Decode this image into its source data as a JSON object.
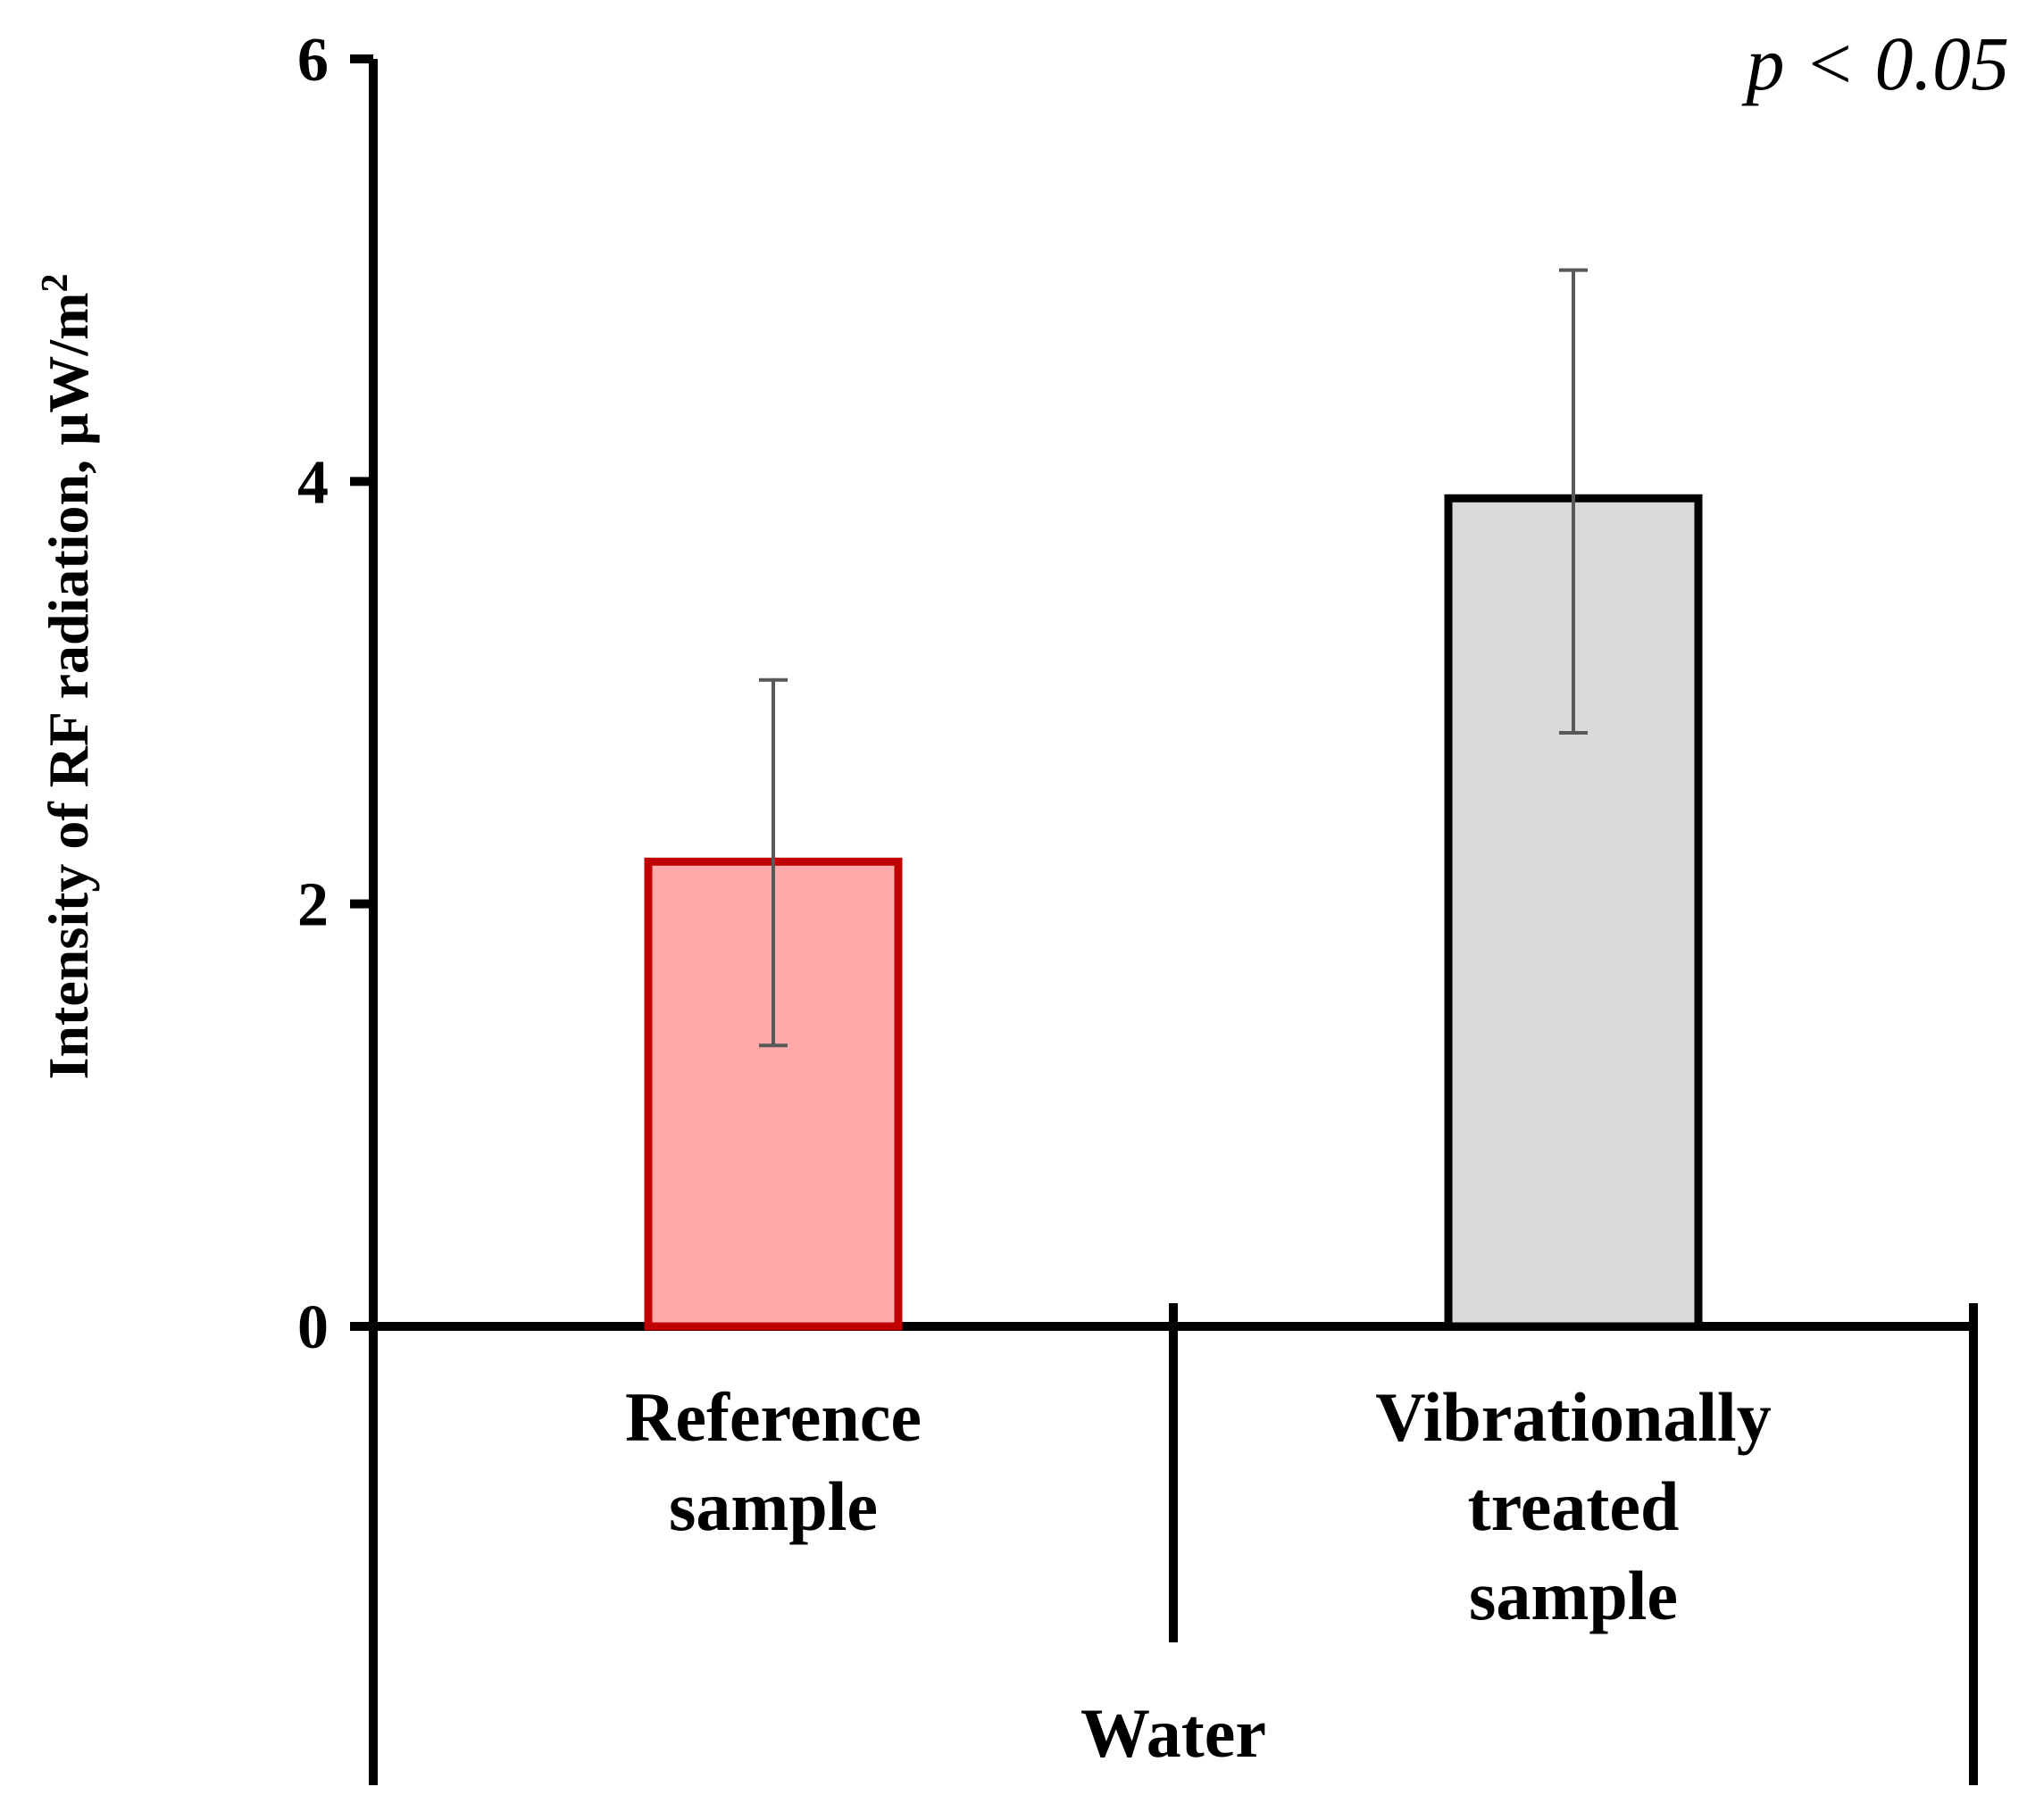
{
  "chart_data": {
    "type": "bar",
    "title": "",
    "ylabel": "Intensity of RF radiation, μW/m",
    "ylabel_superscript": "2",
    "ylim": [
      0,
      6
    ],
    "yticks": [
      "0",
      "2",
      "4",
      "6"
    ],
    "categories": [
      [
        "Reference",
        "sample"
      ],
      [
        "Vibrationally",
        "treated",
        "sample"
      ]
    ],
    "group_label": "Water",
    "values": [
      2.2,
      3.92
    ],
    "errors": [
      {
        "low": 1.33,
        "high": 3.06
      },
      {
        "low": 2.81,
        "high": 5.0
      }
    ],
    "annotation": "p < 0.05",
    "grid": false,
    "legend": "none",
    "colors": {
      "bar_fills": [
        "#FFAAAA",
        "#D9D9D9"
      ],
      "bar_strokes": [
        "#C00000",
        "#000000"
      ],
      "error_bar": "#595959",
      "axis": "#000000"
    }
  }
}
